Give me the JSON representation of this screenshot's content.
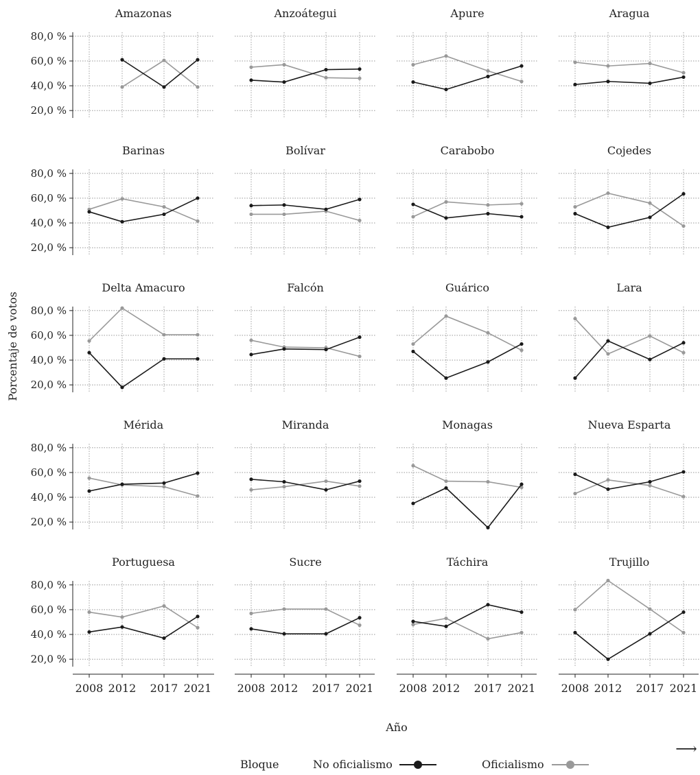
{
  "chart_data": {
    "type": "line",
    "ylabel": "Porcentaje de votos",
    "xlabel": "Año",
    "x": [
      "2008",
      "2012",
      "2017",
      "2021"
    ],
    "yticks": [
      "80,0 %",
      "60,0 %",
      "40,0 %",
      "20,0 %"
    ],
    "ytick_values": [
      80,
      60,
      40,
      20
    ],
    "ylim": [
      14,
      86
    ],
    "grid": true,
    "legend": {
      "title": "Bloque",
      "position": "bottom",
      "entries": [
        {
          "name": "No oficialismo",
          "color": "#1a1a1a"
        },
        {
          "name": "Oficialismo",
          "color": "#999999"
        }
      ]
    },
    "arrow": "⟶",
    "panels": [
      {
        "name": "Amazonas",
        "no_oficialismo": [
          null,
          61,
          39,
          61
        ],
        "oficialismo": [
          null,
          39,
          60.5,
          39
        ]
      },
      {
        "name": "Anzoátegui",
        "no_oficialismo": [
          44.5,
          43,
          53,
          53.5
        ],
        "oficialismo": [
          55,
          57,
          46.5,
          46
        ]
      },
      {
        "name": "Apure",
        "no_oficialismo": [
          43,
          37,
          47.5,
          56
        ],
        "oficialismo": [
          57,
          64,
          52,
          43.5
        ]
      },
      {
        "name": "Aragua",
        "no_oficialismo": [
          41,
          43.5,
          42,
          47
        ],
        "oficialismo": [
          59,
          56,
          58,
          50.5
        ]
      },
      {
        "name": "Barinas",
        "no_oficialismo": [
          49,
          41,
          47,
          60
        ],
        "oficialismo": [
          51,
          59.5,
          53,
          41.5
        ]
      },
      {
        "name": "Bolívar",
        "no_oficialismo": [
          54,
          54.5,
          51,
          59
        ],
        "oficialismo": [
          47,
          47,
          49.5,
          42
        ]
      },
      {
        "name": "Carabobo",
        "no_oficialismo": [
          55,
          44,
          47.5,
          45
        ],
        "oficialismo": [
          45,
          57,
          54.5,
          55.5
        ]
      },
      {
        "name": "Cojedes",
        "no_oficialismo": [
          47.5,
          36.5,
          44.5,
          63.5
        ],
        "oficialismo": [
          53,
          64,
          56,
          37.5
        ]
      },
      {
        "name": "Delta Amacuro",
        "no_oficialismo": [
          46,
          18,
          41,
          41
        ],
        "oficialismo": [
          55.5,
          82,
          60.5,
          60.5
        ]
      },
      {
        "name": "Falcón",
        "no_oficialismo": [
          44.5,
          49,
          48.5,
          58.5
        ],
        "oficialismo": [
          56,
          50.5,
          50,
          43
        ]
      },
      {
        "name": "Guárico",
        "no_oficialismo": [
          47,
          25.5,
          38.5,
          53
        ],
        "oficialismo": [
          53,
          75.5,
          62,
          48
        ]
      },
      {
        "name": "Lara",
        "no_oficialismo": [
          25.5,
          55.5,
          40.5,
          54
        ],
        "oficialismo": [
          73.5,
          45,
          59.5,
          46
        ]
      },
      {
        "name": "Mérida",
        "no_oficialismo": [
          45,
          50.5,
          51.5,
          59.5
        ],
        "oficialismo": [
          55.5,
          50,
          48.5,
          41
        ]
      },
      {
        "name": "Miranda",
        "no_oficialismo": [
          54.5,
          52.5,
          46,
          53
        ],
        "oficialismo": [
          46,
          48.5,
          53,
          49
        ]
      },
      {
        "name": "Monagas",
        "no_oficialismo": [
          35,
          47.5,
          15.5,
          50.5
        ],
        "oficialismo": [
          65.5,
          53,
          52.5,
          48
        ]
      },
      {
        "name": "Nueva Esparta",
        "no_oficialismo": [
          58.5,
          46.5,
          52.5,
          60.5
        ],
        "oficialismo": [
          43,
          54,
          49.5,
          40.5
        ]
      },
      {
        "name": "Portuguesa",
        "no_oficialismo": [
          42,
          46,
          37,
          54.5
        ],
        "oficialismo": [
          58,
          54,
          63,
          45.5
        ]
      },
      {
        "name": "Sucre",
        "no_oficialismo": [
          44.5,
          40.5,
          40.5,
          53.5
        ],
        "oficialismo": [
          57,
          60.5,
          60.5,
          47.5
        ]
      },
      {
        "name": "Táchira",
        "no_oficialismo": [
          50.5,
          46.5,
          64,
          58
        ],
        "oficialismo": [
          48,
          53,
          36.5,
          41.5
        ]
      },
      {
        "name": "Trujillo",
        "no_oficialismo": [
          41.5,
          20,
          40.5,
          58
        ],
        "oficialismo": [
          60,
          83.5,
          60.5,
          41.5
        ]
      }
    ]
  }
}
